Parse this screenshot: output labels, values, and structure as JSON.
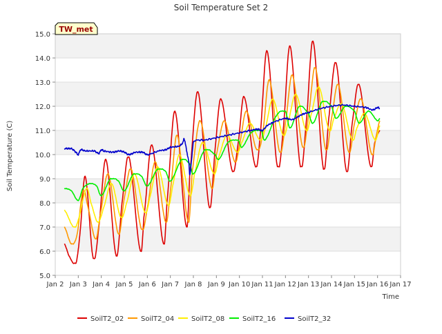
{
  "chart_data": {
    "type": "line",
    "title": "Soil Temperature Set 2",
    "xlabel": "Time",
    "ylabel": "Soil Temperature (C)",
    "ylim": [
      5.0,
      15.0
    ],
    "xlim": [
      "Jan 2",
      "Jan 17"
    ],
    "yticks": [
      "5.0",
      "6.0",
      "7.0",
      "8.0",
      "9.0",
      "10.0",
      "11.0",
      "12.0",
      "13.0",
      "14.0",
      "15.0"
    ],
    "xticks": [
      "Jan 2",
      "Jan 3",
      "Jan 4",
      "Jan 5",
      "Jan 6",
      "Jan 7",
      "Jan 8",
      "Jan 9",
      "Jan 10",
      "Jan 11",
      "Jan 12",
      "Jan 13",
      "Jan 14",
      "Jan 15",
      "Jan 16",
      "Jan 17"
    ],
    "grid": true,
    "legend_position": "bottom",
    "annotation": "TW_met",
    "x_start_date": "Jan 2",
    "series": [
      {
        "name": "SoilT2_02",
        "color": "#dd0000",
        "x": [
          2.4,
          2.6,
          2.9,
          3.08,
          3.3,
          3.65,
          3.88,
          4.2,
          4.65,
          4.9,
          5.2,
          5.7,
          5.85,
          6.2,
          6.7,
          6.85,
          7.2,
          7.7,
          7.85,
          8.2,
          8.7,
          8.95,
          9.2,
          9.7,
          9.95,
          10.2,
          10.7,
          10.9,
          11.2,
          11.65,
          11.9,
          12.2,
          12.65,
          12.9,
          13.2,
          13.65,
          13.88,
          14.2,
          14.65,
          14.9,
          15.2,
          15.7,
          15.88,
          16.1
        ],
        "y": [
          6.3,
          5.8,
          5.5,
          6.8,
          9.1,
          5.7,
          6.9,
          9.8,
          5.8,
          8.0,
          9.9,
          6.0,
          7.4,
          10.4,
          6.3,
          8.0,
          11.8,
          7.0,
          9.3,
          12.6,
          7.8,
          10.3,
          12.3,
          9.3,
          10.5,
          12.4,
          9.5,
          10.8,
          14.3,
          9.5,
          11.0,
          14.5,
          9.5,
          11.3,
          14.7,
          9.4,
          11.5,
          13.8,
          9.3,
          11.3,
          12.9,
          9.5,
          10.5,
          11.0
        ]
      },
      {
        "name": "SoilT2_04",
        "color": "#ff9900",
        "x": [
          2.4,
          2.7,
          2.95,
          3.2,
          3.4,
          3.75,
          3.95,
          4.3,
          4.75,
          5.0,
          5.3,
          5.75,
          6.0,
          6.35,
          6.8,
          7.0,
          7.3,
          7.78,
          7.95,
          8.3,
          8.8,
          9.0,
          9.35,
          9.8,
          10.0,
          10.3,
          10.75,
          11.0,
          11.3,
          11.75,
          12.0,
          12.3,
          12.75,
          13.0,
          13.3,
          13.75,
          14.0,
          14.3,
          14.75,
          15.0,
          15.3,
          15.75,
          15.95,
          16.1
        ],
        "y": [
          7.0,
          6.3,
          6.7,
          8.5,
          7.9,
          6.5,
          7.5,
          9.2,
          6.7,
          8.2,
          9.4,
          6.9,
          7.8,
          9.7,
          7.2,
          8.5,
          10.8,
          7.2,
          9.3,
          11.4,
          8.6,
          10.0,
          11.4,
          9.7,
          10.4,
          11.8,
          10.2,
          10.8,
          13.1,
          10.1,
          11.3,
          13.3,
          10.3,
          11.6,
          13.6,
          10.2,
          11.5,
          12.9,
          10.1,
          11.3,
          12.3,
          10.0,
          10.8,
          11.4
        ]
      },
      {
        "name": "SoilT2_08",
        "color": "#ffee00",
        "x": [
          2.4,
          2.8,
          3.0,
          3.35,
          3.55,
          3.85,
          4.1,
          4.45,
          4.85,
          5.1,
          5.45,
          5.9,
          6.1,
          6.45,
          6.9,
          7.1,
          7.4,
          7.85,
          8.05,
          8.4,
          8.9,
          9.1,
          9.45,
          9.9,
          10.1,
          10.45,
          10.9,
          11.1,
          11.45,
          11.9,
          12.1,
          12.45,
          12.9,
          13.1,
          13.45,
          13.9,
          14.1,
          14.45,
          14.9,
          15.1,
          15.45,
          15.9,
          16.1
        ],
        "y": [
          7.7,
          7.0,
          7.3,
          8.6,
          8.0,
          7.2,
          7.8,
          8.8,
          7.4,
          8.0,
          9.2,
          7.6,
          8.2,
          9.5,
          7.9,
          8.7,
          10.0,
          8.3,
          9.2,
          10.5,
          9.2,
          9.9,
          10.8,
          10.1,
          10.5,
          11.3,
          10.6,
          11.0,
          12.3,
          10.8,
          11.3,
          12.5,
          11.0,
          11.6,
          12.8,
          11.0,
          11.5,
          12.1,
          10.6,
          11.1,
          11.7,
          10.6,
          11.2
        ]
      },
      {
        "name": "SoilT2_16",
        "color": "#00ee00",
        "x": [
          2.4,
          2.7,
          3.0,
          3.2,
          3.5,
          3.8,
          4.0,
          4.4,
          4.75,
          5.0,
          5.4,
          5.75,
          6.0,
          6.45,
          6.8,
          7.0,
          7.5,
          7.85,
          8.0,
          8.5,
          8.95,
          9.1,
          9.5,
          9.95,
          10.1,
          10.5,
          10.95,
          11.1,
          11.6,
          12.0,
          12.2,
          12.6,
          13.0,
          13.2,
          13.6,
          14.0,
          14.2,
          14.6,
          15.0,
          15.2,
          15.6,
          16.0,
          16.1
        ],
        "y": [
          8.6,
          8.5,
          8.1,
          8.6,
          8.8,
          8.7,
          8.3,
          9.0,
          8.9,
          8.5,
          9.2,
          9.1,
          8.7,
          9.4,
          9.3,
          8.9,
          9.8,
          9.6,
          9.2,
          10.2,
          10.0,
          9.8,
          10.5,
          10.6,
          10.3,
          10.9,
          11.0,
          10.6,
          11.6,
          11.8,
          11.1,
          12.0,
          11.7,
          11.3,
          12.2,
          12.0,
          11.5,
          12.0,
          11.8,
          11.3,
          11.8,
          11.4,
          11.5
        ]
      },
      {
        "name": "SoilT2_32",
        "color": "#0000cc",
        "x": [
          2.4,
          2.7,
          2.9,
          3.0,
          3.1,
          3.3,
          3.7,
          3.9,
          4.0,
          4.1,
          4.5,
          4.8,
          5.0,
          5.2,
          5.5,
          5.8,
          6.0,
          6.5,
          6.8,
          7.0,
          7.4,
          7.55,
          7.6,
          7.7,
          7.8,
          7.85,
          8.0,
          8.5,
          9.0,
          9.5,
          10.0,
          10.5,
          10.8,
          11.0,
          11.2,
          11.5,
          12.0,
          12.3,
          12.7,
          13.0,
          13.5,
          14.0,
          14.5,
          15.0,
          15.5,
          15.8,
          16.0,
          16.1
        ],
        "y": [
          10.25,
          10.25,
          10.1,
          10.0,
          10.2,
          10.15,
          10.15,
          10.05,
          10.2,
          10.15,
          10.1,
          10.15,
          10.1,
          10.0,
          10.1,
          10.1,
          10.0,
          10.15,
          10.2,
          10.3,
          10.35,
          10.5,
          10.65,
          10.2,
          9.7,
          9.2,
          10.5,
          10.6,
          10.7,
          10.8,
          10.9,
          11.0,
          11.05,
          11.0,
          11.2,
          11.35,
          11.5,
          11.45,
          11.65,
          11.75,
          11.9,
          12.0,
          12.05,
          12.0,
          11.95,
          11.85,
          11.95,
          11.9
        ]
      }
    ]
  }
}
